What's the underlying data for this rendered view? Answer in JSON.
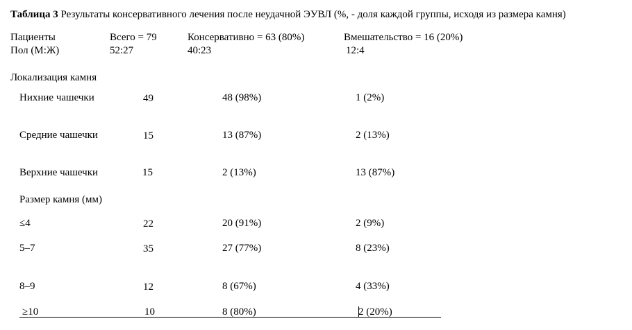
{
  "caption": {
    "label": "Таблица 3",
    "text": " Результаты консервативного лечения после неудачной ЭУВЛ (%, - доля каждой группы, исходя из размера камня)"
  },
  "header": {
    "patients": "Пациенты",
    "total": "Всего = 79",
    "conservative": "Консервативно = 63 (80%)",
    "intervention": "Вмешательство = 16 (20%)"
  },
  "sex": {
    "label": "Пол (М:Ж)",
    "total": "52:27",
    "conservative": "40:23",
    "intervention": "12:4"
  },
  "localization": {
    "heading": "Локализация камня",
    "rows": [
      {
        "label": "Нихние чашечки",
        "total": "49",
        "conservative": "48 (98%)",
        "intervention": "1 (2%)"
      },
      {
        "label": "Средние чашечки",
        "total": "15",
        "conservative": "13 (87%)",
        "intervention": "2 (13%)"
      },
      {
        "label": "Верхние чашечки",
        "total": "15",
        "conservative": "2 (13%)",
        "intervention": "13 (87%)"
      }
    ]
  },
  "size": {
    "heading": "Размер камня (мм)",
    "rows": [
      {
        "label": "≤4",
        "total": "22",
        "conservative": "20 (91%)",
        "intervention": "2 (9%)"
      },
      {
        "label": "5–7",
        "total": "35",
        "conservative": "27 (77%)",
        "intervention": "8 (23%)"
      },
      {
        "label": "8–9",
        "total": "12",
        "conservative": "8 (67%)",
        "intervention": "4 (33%)"
      },
      {
        "label": "≥10",
        "total": "10",
        "conservative": "8 (80%)",
        "intervention": "2 (20%)"
      }
    ]
  }
}
